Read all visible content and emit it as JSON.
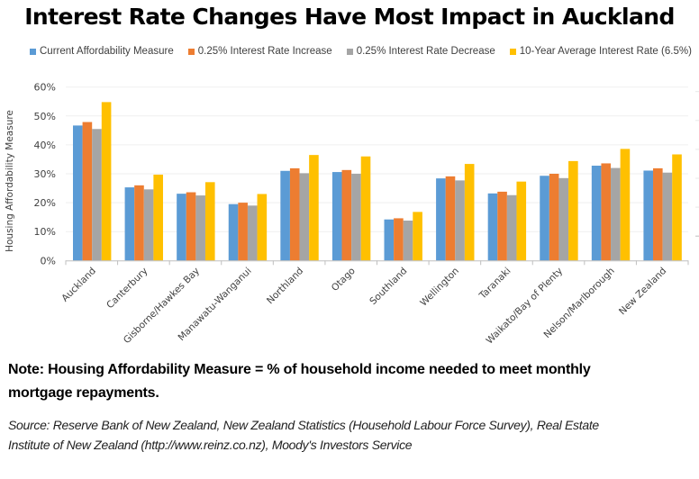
{
  "chart_data": {
    "type": "bar",
    "title": "Interest Rate Changes Have Most Impact in Auckland",
    "xlabel": "",
    "ylabel": "Housing Affordability Measure",
    "ylim": [
      0,
      60
    ],
    "yticks": [
      0,
      10,
      20,
      30,
      40,
      50,
      60
    ],
    "ytick_labels": [
      "0%",
      "10%",
      "20%",
      "30%",
      "40%",
      "50%",
      "60%"
    ],
    "grid": true,
    "legend_position": "top",
    "categories": [
      "Auckland",
      "Canterbury",
      "Gisborne/Hawkes Bay",
      "Manawatu-Wanganui",
      "Northland",
      "Otago",
      "Southland",
      "Wellington",
      "Taranaki",
      "Waikato/Bay of Plenty",
      "Nelson/Marlborough",
      "New Zealand"
    ],
    "series": [
      {
        "name": "Current Affordability Measure",
        "color": "#5B9BD5",
        "values": [
          46.7,
          25.3,
          23.1,
          19.5,
          31.0,
          30.6,
          14.2,
          28.4,
          23.2,
          29.3,
          32.8,
          31.1
        ]
      },
      {
        "name": "0.25% Interest Rate Increase",
        "color": "#ED7D31",
        "values": [
          47.9,
          26.0,
          23.6,
          20.0,
          31.9,
          31.3,
          14.6,
          29.1,
          23.8,
          30.0,
          33.6,
          31.9
        ]
      },
      {
        "name": "0.25% Interest Rate Decrease",
        "color": "#A5A5A5",
        "values": [
          45.5,
          24.6,
          22.5,
          19.0,
          30.2,
          30.0,
          13.8,
          27.7,
          22.6,
          28.5,
          32.0,
          30.4
        ]
      },
      {
        "name": "10-Year Average Interest Rate (6.5%)",
        "color": "#FFC000",
        "values": [
          54.8,
          29.7,
          27.1,
          23.0,
          36.5,
          36.0,
          16.8,
          33.4,
          27.3,
          34.4,
          38.6,
          36.7
        ]
      }
    ]
  },
  "note": "Note: Housing Affordability Measure = % of household income needed to meet monthly mortgage repayments.",
  "source": "Source: Reserve Bank of New Zealand, New Zealand Statistics (Household Labour Force Survey), Real Estate Institute of New Zealand (http://www.reinz.co.nz), Moody's Investors Service"
}
